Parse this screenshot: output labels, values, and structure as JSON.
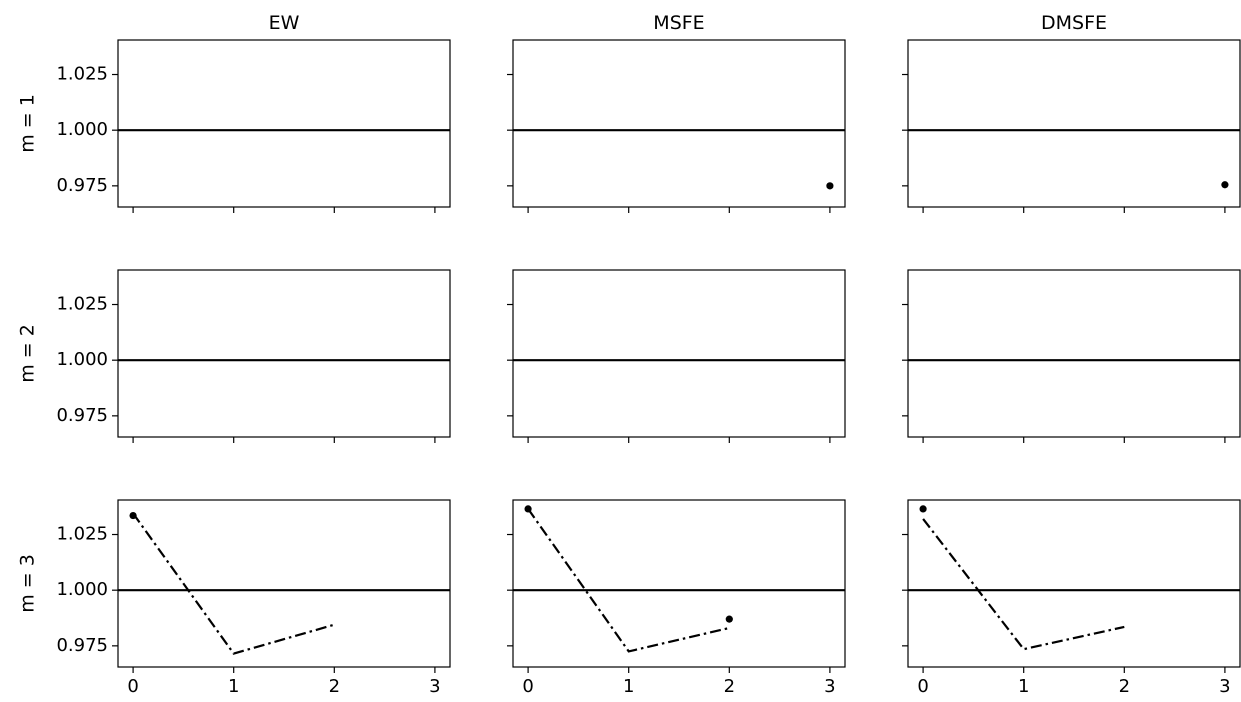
{
  "chart_data": {
    "type": "line",
    "layout": "grid 3x3, shared x and y axes",
    "column_titles": [
      "EW",
      "MSFE",
      "DMSFE"
    ],
    "row_labels": [
      "m = 1",
      "m = 2",
      "m = 3"
    ],
    "xticks": [
      0,
      1,
      2,
      3
    ],
    "xtick_labels": [
      "0",
      "1",
      "2",
      "3"
    ],
    "xlim": [
      -0.15,
      3.15
    ],
    "yticks": [
      0.975,
      1.0,
      1.025
    ],
    "ytick_labels": [
      "0.975",
      "1.000",
      "1.025"
    ],
    "ylim": [
      0.9655,
      1.0405
    ],
    "reference_line_y": 1.0,
    "grid": false,
    "panels": [
      {
        "row": 0,
        "col": 0,
        "line_x": [],
        "line_y": [],
        "points": []
      },
      {
        "row": 0,
        "col": 1,
        "line_x": [],
        "line_y": [],
        "points": [
          {
            "x": 3,
            "y": 0.975
          }
        ]
      },
      {
        "row": 0,
        "col": 2,
        "line_x": [],
        "line_y": [],
        "points": [
          {
            "x": 3,
            "y": 0.9755
          }
        ]
      },
      {
        "row": 1,
        "col": 0,
        "line_x": [],
        "line_y": [],
        "points": []
      },
      {
        "row": 1,
        "col": 1,
        "line_x": [],
        "line_y": [],
        "points": []
      },
      {
        "row": 1,
        "col": 2,
        "line_x": [],
        "line_y": [],
        "points": []
      },
      {
        "row": 2,
        "col": 0,
        "line_x": [
          0,
          1,
          2
        ],
        "line_y": [
          1.0345,
          0.9715,
          0.9845
        ],
        "points": [
          {
            "x": 0,
            "y": 1.0335
          }
        ]
      },
      {
        "row": 2,
        "col": 1,
        "line_x": [
          0,
          1,
          2
        ],
        "line_y": [
          1.0365,
          0.9725,
          0.983
        ],
        "points": [
          {
            "x": 0,
            "y": 1.0365
          },
          {
            "x": 2,
            "y": 0.987
          }
        ]
      },
      {
        "row": 2,
        "col": 2,
        "line_x": [
          0,
          1,
          2
        ],
        "line_y": [
          1.032,
          0.9735,
          0.9835
        ],
        "points": [
          {
            "x": 0,
            "y": 1.0365
          }
        ]
      }
    ]
  }
}
